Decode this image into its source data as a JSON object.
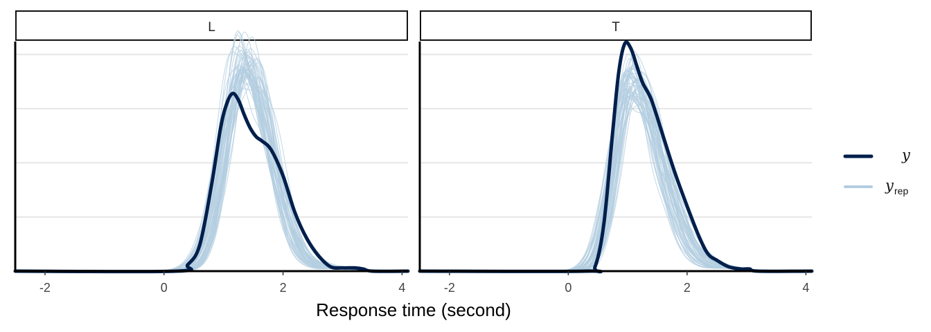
{
  "chart_data": {
    "type": "line",
    "xlabel": "Response time (second)",
    "xlim": [
      -2.5,
      4.1
    ],
    "x_ticks": [
      -2,
      0,
      2,
      4
    ],
    "x_tick_labels": [
      "-2",
      "0",
      "2",
      "4"
    ],
    "y_axis_visible": false,
    "grid": "horizontal-only",
    "legend_position": "right",
    "legend": [
      {
        "key": "y",
        "label": "y",
        "subscript": "",
        "color": "#011f4b",
        "line": "thick"
      },
      {
        "key": "yrep",
        "label": "y",
        "subscript": "rep",
        "color": "#b3cde0",
        "line": "medium"
      }
    ],
    "colors": {
      "y": "#011f4b",
      "yrep": "#b3cde0"
    },
    "n_yrep_draws": 50,
    "panels": [
      {
        "title": "L",
        "ylim": [
          0,
          1.06
        ],
        "y_grid_values": [
          0.25,
          0.5,
          0.75,
          1.0
        ],
        "observed": {
          "x": [
            -2.5,
            0.2,
            0.4,
            0.6,
            0.8,
            0.95,
            1.05,
            1.15,
            1.25,
            1.35,
            1.45,
            1.55,
            1.65,
            1.8,
            2.0,
            2.2,
            2.4,
            2.6,
            2.8,
            3.0,
            3.2,
            3.35,
            3.5,
            4.1
          ],
          "y": [
            0,
            0.0,
            0.03,
            0.12,
            0.4,
            0.66,
            0.77,
            0.82,
            0.79,
            0.72,
            0.66,
            0.62,
            0.6,
            0.56,
            0.44,
            0.27,
            0.15,
            0.07,
            0.02,
            0.015,
            0.015,
            0.01,
            0.0,
            0
          ]
        },
        "replicates": {
          "mode": 1.35,
          "sd_left": 0.32,
          "sd_right": 0.45,
          "peak": 0.97,
          "mode_spread": 0.1,
          "peak_spread": 0.07
        }
      },
      {
        "title": "T",
        "ylim": [
          0,
          1.06
        ],
        "y_grid_values": [
          0.25,
          0.5,
          0.75,
          1.0
        ],
        "observed": {
          "x": [
            -2.5,
            0.3,
            0.45,
            0.6,
            0.75,
            0.85,
            0.95,
            1.05,
            1.15,
            1.25,
            1.4,
            1.6,
            1.8,
            2.0,
            2.2,
            2.35,
            2.5,
            2.7,
            2.9,
            3.05,
            3.2,
            4.1
          ],
          "y": [
            0,
            0.0,
            0.02,
            0.22,
            0.65,
            0.92,
            1.05,
            1.03,
            0.95,
            0.87,
            0.79,
            0.62,
            0.45,
            0.3,
            0.16,
            0.08,
            0.05,
            0.02,
            0.01,
            0.01,
            0.0,
            0
          ]
        },
        "replicates": {
          "mode": 1.05,
          "sd_left": 0.28,
          "sd_right": 0.5,
          "peak": 0.87,
          "mode_spread": 0.1,
          "peak_spread": 0.07
        }
      }
    ]
  }
}
